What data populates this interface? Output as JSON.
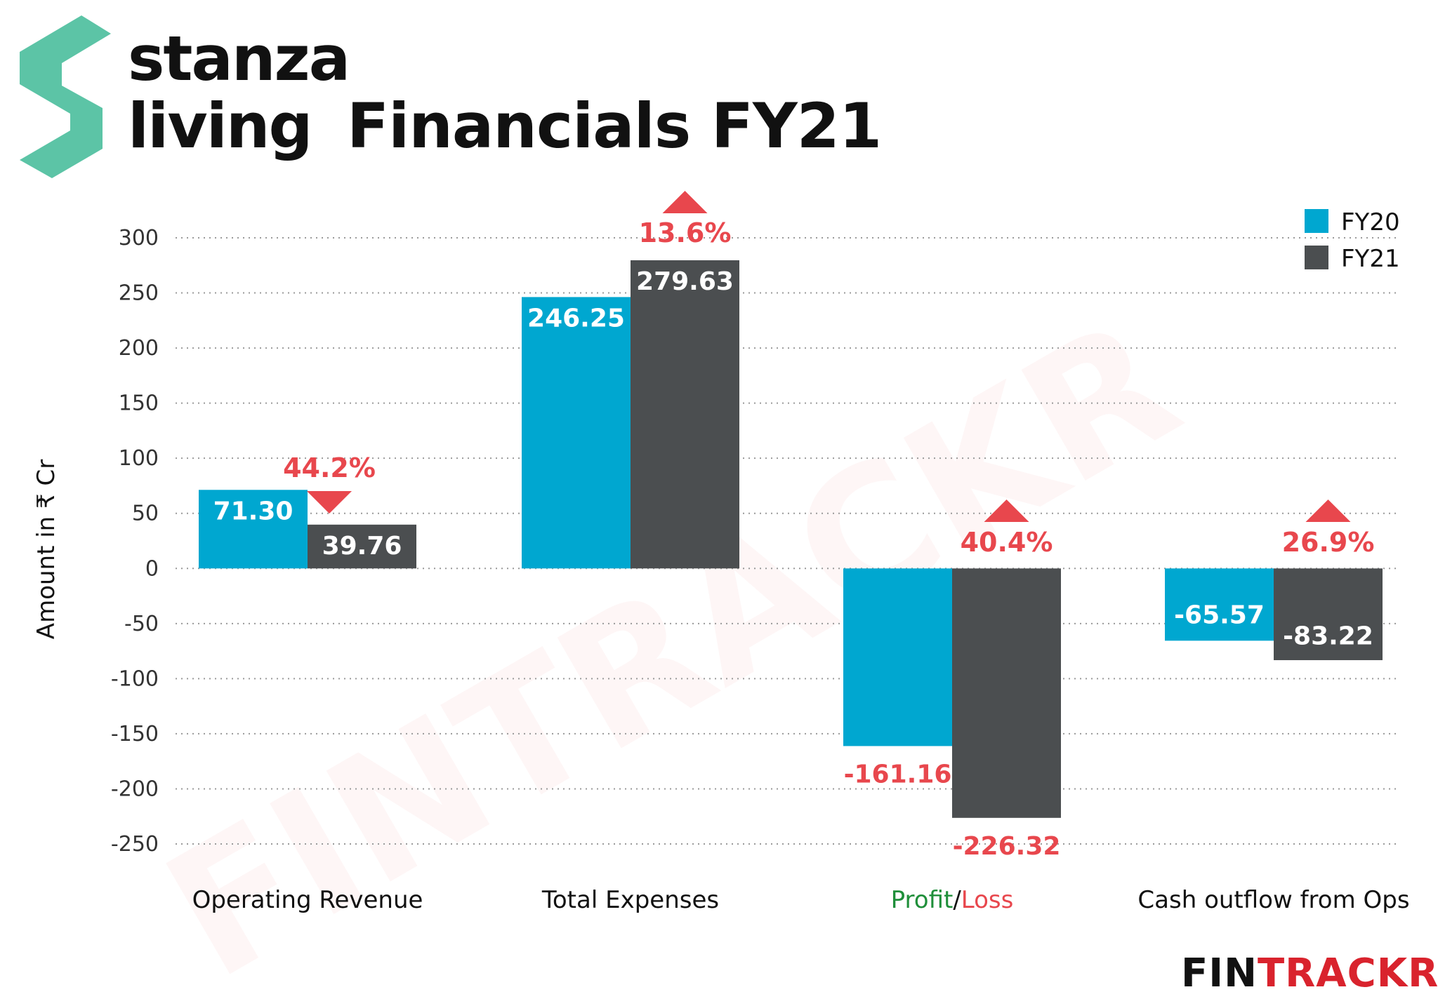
{
  "brand": {
    "line1": "stanza",
    "line2": "living",
    "icon": "stanza-living-logo-icon",
    "color": "#5cc4a6"
  },
  "title": "Financials FY21",
  "footer_logo": {
    "prefix": "FIN",
    "suffix": "TRACKR"
  },
  "watermark": "FINTRACKR",
  "colors": {
    "fy20": "#00a7d0",
    "fy21": "#4b4e50",
    "change": "#e8474d",
    "profit": "#1f8f3a",
    "loss": "#e8474d",
    "grid": "#9a9a9a"
  },
  "chart_data": {
    "type": "bar",
    "ylabel": "Amount in ₹ Cr",
    "ylim": [
      -250,
      300
    ],
    "yticks": [
      300,
      250,
      200,
      150,
      100,
      50,
      0,
      -50,
      -100,
      -150,
      -200,
      -250
    ],
    "grid": true,
    "legend_position": "top-right",
    "categories": [
      "Operating Revenue",
      "Total Expenses",
      "Profit/Loss",
      "Cash outflow from Ops"
    ],
    "category_label_parts": {
      "Profit/Loss": [
        "Profit",
        "/",
        "Loss"
      ]
    },
    "series": [
      {
        "name": "FY20",
        "values": [
          71.3,
          246.25,
          -161.16,
          -65.57
        ],
        "labels": [
          "71.30",
          "246.25",
          "-161.16",
          "-65.57"
        ]
      },
      {
        "name": "FY21",
        "values": [
          39.76,
          279.63,
          -226.32,
          -83.22
        ],
        "labels": [
          "39.76",
          "279.63",
          "-226.32",
          "-83.22"
        ]
      }
    ],
    "changes": [
      {
        "label": "44.2%",
        "direction": "down"
      },
      {
        "label": "13.6%",
        "direction": "up"
      },
      {
        "label": "40.4%",
        "direction": "up"
      },
      {
        "label": "26.9%",
        "direction": "up"
      }
    ]
  }
}
